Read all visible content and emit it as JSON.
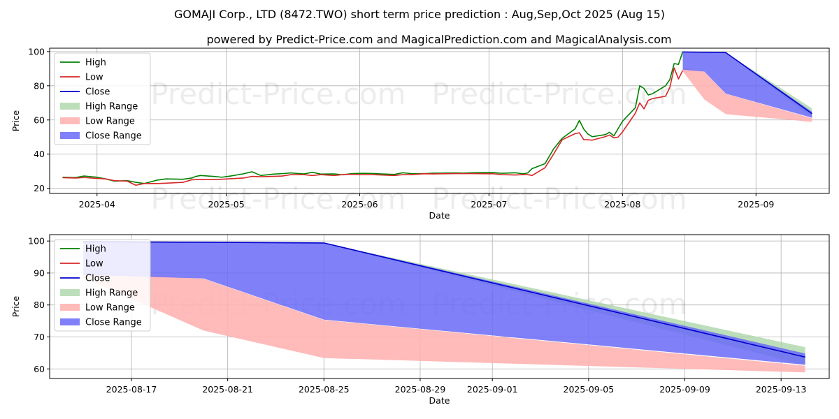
{
  "chart_data": [
    {
      "type": "line",
      "title": "GOMAJI Corp., LTD (8472.TWO) short term price prediction : Aug,Sep,Oct 2025 (Aug 15)",
      "subtitle": "powered by Predict-Price.com and MagicalPrediction.com and MagicalAnalysis.com",
      "watermark": "Predict-Price.com",
      "xlabel": "Date",
      "ylabel": "Price",
      "xlim": [
        "2025-03-21",
        "2025-09-18"
      ],
      "ylim": [
        17,
        102
      ],
      "xticks": [
        "2025-04",
        "2025-05",
        "2025-06",
        "2025-07",
        "2025-08",
        "2025-09"
      ],
      "yticks": [
        20,
        40,
        60,
        80,
        100
      ],
      "grid": true,
      "legend_position": "top-left",
      "legend": [
        "High",
        "Low",
        "Close",
        "High Range",
        "Low Range",
        "Close Range"
      ],
      "colors": {
        "high": "#008000",
        "low": "#d62728",
        "close": "#0000cd",
        "high_range": "#a7d3a3",
        "low_range": "#ffb3b3",
        "close_range": "#6a6af7"
      },
      "series": [
        {
          "name": "High",
          "x": [
            "2025-03-24",
            "2025-03-27",
            "2025-03-29",
            "2025-04-01",
            "2025-04-03",
            "2025-04-05",
            "2025-04-08",
            "2025-04-10",
            "2025-04-12",
            "2025-04-15",
            "2025-04-17",
            "2025-04-21",
            "2025-04-23",
            "2025-04-24",
            "2025-04-25",
            "2025-04-28",
            "2025-04-30",
            "2025-05-02",
            "2025-05-05",
            "2025-05-07",
            "2025-05-09",
            "2025-05-12",
            "2025-05-14",
            "2025-05-16",
            "2025-05-19",
            "2025-05-21",
            "2025-05-23",
            "2025-05-26",
            "2025-05-28",
            "2025-05-30",
            "2025-06-02",
            "2025-06-04",
            "2025-06-06",
            "2025-06-09",
            "2025-06-11",
            "2025-06-13",
            "2025-06-16",
            "2025-06-18",
            "2025-06-20",
            "2025-06-23",
            "2025-06-25",
            "2025-06-27",
            "2025-06-30",
            "2025-07-02",
            "2025-07-04",
            "2025-07-07",
            "2025-07-09",
            "2025-07-10",
            "2025-07-11",
            "2025-07-14",
            "2025-07-16",
            "2025-07-18",
            "2025-07-21",
            "2025-07-22",
            "2025-07-23",
            "2025-07-24",
            "2025-07-25",
            "2025-07-28",
            "2025-07-29",
            "2025-07-30",
            "2025-07-31",
            "2025-08-01",
            "2025-08-04",
            "2025-08-05",
            "2025-08-06",
            "2025-08-07",
            "2025-08-08",
            "2025-08-11",
            "2025-08-12",
            "2025-08-13",
            "2025-08-14",
            "2025-08-15"
          ],
          "values": [
            26.5,
            26.3,
            27.2,
            26.5,
            25.5,
            24.2,
            24.5,
            23.5,
            22.8,
            24.8,
            25.5,
            25.3,
            26.0,
            27.0,
            27.5,
            27.0,
            26.5,
            27.2,
            28.5,
            29.7,
            27.5,
            28.3,
            28.6,
            29.0,
            28.4,
            29.4,
            28.3,
            28.4,
            27.9,
            28.6,
            28.8,
            28.7,
            28.4,
            28.1,
            29.1,
            28.6,
            28.6,
            28.9,
            28.9,
            29.0,
            28.9,
            29.1,
            29.2,
            29.2,
            28.8,
            29.1,
            28.5,
            29.0,
            31.5,
            34.4,
            43.0,
            49.3,
            54.8,
            59.7,
            54.7,
            51.7,
            50.2,
            51.4,
            52.8,
            50.7,
            55.0,
            59.2,
            67.2,
            80.0,
            78.4,
            74.6,
            75.4,
            80.0,
            83.7,
            93.0,
            92.5,
            100.0
          ]
        },
        {
          "name": "Low",
          "x": [
            "2025-03-24",
            "2025-03-27",
            "2025-03-29",
            "2025-04-01",
            "2025-04-03",
            "2025-04-05",
            "2025-04-08",
            "2025-04-10",
            "2025-04-12",
            "2025-04-15",
            "2025-04-17",
            "2025-04-21",
            "2025-04-23",
            "2025-04-24",
            "2025-04-25",
            "2025-04-28",
            "2025-04-30",
            "2025-05-02",
            "2025-05-05",
            "2025-05-07",
            "2025-05-09",
            "2025-05-12",
            "2025-05-14",
            "2025-05-16",
            "2025-05-19",
            "2025-05-21",
            "2025-05-23",
            "2025-05-26",
            "2025-05-28",
            "2025-05-30",
            "2025-06-02",
            "2025-06-04",
            "2025-06-06",
            "2025-06-09",
            "2025-06-11",
            "2025-06-13",
            "2025-06-16",
            "2025-06-18",
            "2025-06-20",
            "2025-06-23",
            "2025-06-25",
            "2025-06-27",
            "2025-06-30",
            "2025-07-02",
            "2025-07-04",
            "2025-07-07",
            "2025-07-09",
            "2025-07-10",
            "2025-07-11",
            "2025-07-14",
            "2025-07-16",
            "2025-07-18",
            "2025-07-21",
            "2025-07-22",
            "2025-07-23",
            "2025-07-24",
            "2025-07-25",
            "2025-07-28",
            "2025-07-29",
            "2025-07-30",
            "2025-07-31",
            "2025-08-01",
            "2025-08-04",
            "2025-08-05",
            "2025-08-06",
            "2025-08-07",
            "2025-08-08",
            "2025-08-11",
            "2025-08-12",
            "2025-08-13",
            "2025-08-14",
            "2025-08-15"
          ],
          "values": [
            26.2,
            26.0,
            26.3,
            25.8,
            25.5,
            24.5,
            24.2,
            21.8,
            22.8,
            22.8,
            23.0,
            23.5,
            25.0,
            25.1,
            25.2,
            25.1,
            25.3,
            25.6,
            26.0,
            27.0,
            26.8,
            27.0,
            27.2,
            28.0,
            28.0,
            27.5,
            28.0,
            27.5,
            28.0,
            28.2,
            28.0,
            28.0,
            27.8,
            27.5,
            28.0,
            28.0,
            28.5,
            28.4,
            28.5,
            28.6,
            28.6,
            28.6,
            28.5,
            28.5,
            28.0,
            27.8,
            28.0,
            28.0,
            27.5,
            32.0,
            40.0,
            48.4,
            52.0,
            52.5,
            48.5,
            48.4,
            48.2,
            50.2,
            51.2,
            49.5,
            50.0,
            53.0,
            64.0,
            70.0,
            66.5,
            71.5,
            72.5,
            73.9,
            79.0,
            90.5,
            84.0,
            89.0
          ]
        },
        {
          "name": "Close",
          "x": [
            "2025-08-15",
            "2025-08-20",
            "2025-08-25",
            "2025-09-14"
          ],
          "values": [
            99.8,
            99.6,
            99.4,
            63.7
          ]
        },
        {
          "name": "High Range",
          "x": [
            "2025-08-15",
            "2025-08-20",
            "2025-08-25",
            "2025-09-14"
          ],
          "upper": [
            99.8,
            99.6,
            99.4,
            66.8
          ],
          "lower": [
            99.8,
            99.6,
            99.4,
            61.2
          ]
        },
        {
          "name": "Low Range",
          "x": [
            "2025-08-15",
            "2025-08-20",
            "2025-08-25",
            "2025-09-14"
          ],
          "upper": [
            90.5,
            88.2,
            75.3,
            61.0
          ],
          "lower": [
            88.5,
            72.0,
            63.4,
            58.9
          ]
        },
        {
          "name": "Close Range",
          "x": [
            "2025-08-15",
            "2025-08-20",
            "2025-08-25",
            "2025-09-14"
          ],
          "upper": [
            99.9,
            99.7,
            99.5,
            64.8
          ],
          "lower": [
            89.4,
            88.3,
            75.4,
            61.3
          ]
        }
      ]
    },
    {
      "type": "line",
      "watermark": "Predict-Price.com",
      "xlabel": "Date",
      "ylabel": "Price",
      "xlim": [
        "2025-08-13.6",
        "2025-09-15.0"
      ],
      "ylim": [
        57,
        102
      ],
      "xticks": [
        "2025-08-17",
        "2025-08-21",
        "2025-08-25",
        "2025-08-29",
        "2025-09-01",
        "2025-09-05",
        "2025-09-09",
        "2025-09-13"
      ],
      "yticks": [
        60,
        70,
        80,
        90,
        100
      ],
      "grid": true,
      "legend_position": "top-left",
      "legend": [
        "High",
        "Low",
        "Close",
        "High Range",
        "Low Range",
        "Close Range"
      ],
      "series": [
        {
          "name": "Close",
          "x": [
            "2025-08-15",
            "2025-08-20",
            "2025-08-25",
            "2025-09-14"
          ],
          "values": [
            99.8,
            99.6,
            99.4,
            63.7
          ]
        },
        {
          "name": "High Range",
          "x": [
            "2025-08-15",
            "2025-08-20",
            "2025-08-25",
            "2025-09-14"
          ],
          "upper": [
            99.8,
            99.6,
            99.4,
            66.8
          ],
          "lower": [
            99.8,
            99.6,
            99.4,
            61.2
          ]
        },
        {
          "name": "Low Range",
          "x": [
            "2025-08-15",
            "2025-08-20",
            "2025-08-25",
            "2025-09-14"
          ],
          "upper": [
            90.5,
            88.2,
            75.3,
            61.0
          ],
          "lower": [
            88.5,
            72.0,
            63.4,
            58.9
          ]
        },
        {
          "name": "Close Range",
          "x": [
            "2025-08-15",
            "2025-08-20",
            "2025-08-25",
            "2025-09-14"
          ],
          "upper": [
            99.9,
            99.7,
            99.5,
            64.8
          ],
          "lower": [
            89.4,
            88.3,
            75.4,
            61.3
          ]
        }
      ]
    }
  ]
}
